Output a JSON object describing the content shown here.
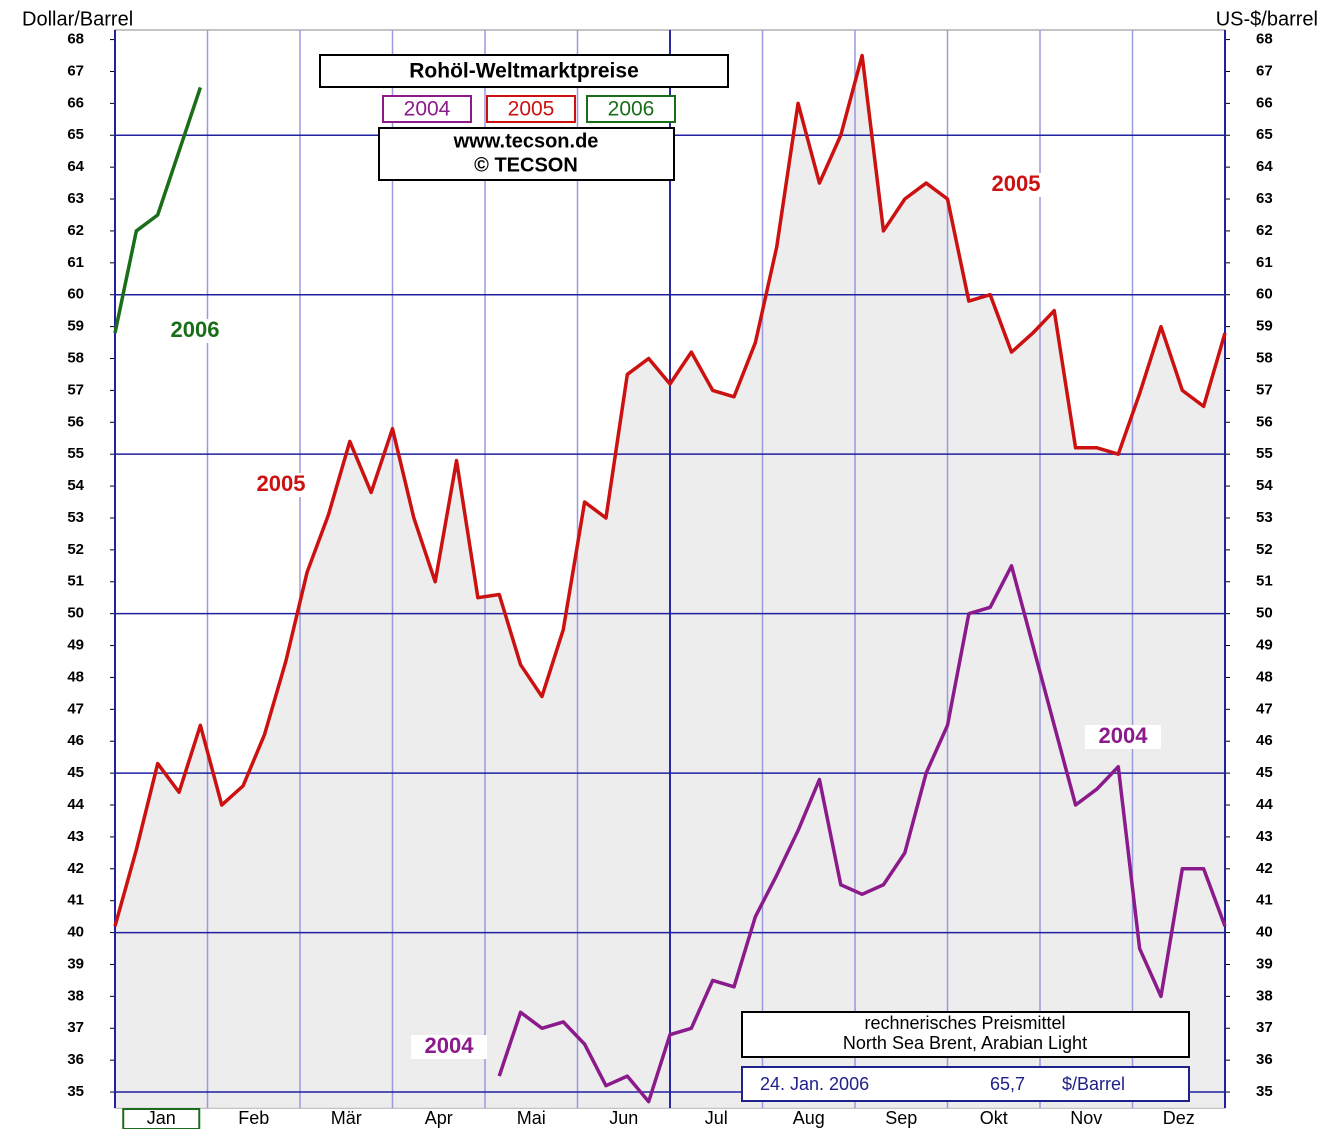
{
  "chart_data": {
    "type": "line",
    "title": "Rohöl-Weltmarktpreise",
    "subtitle": [
      "www.tecson.de",
      "© TECSON"
    ],
    "y_label": "Dollar/Barrel",
    "y2_label": "US-$/barrel",
    "categories": [
      "Jan",
      "Feb",
      "Mär",
      "Apr",
      "Mai",
      "Jun",
      "Jul",
      "Aug",
      "Sep",
      "Okt",
      "Nov",
      "Dez"
    ],
    "x": [
      0,
      1,
      2,
      3,
      4,
      5,
      6,
      7,
      8,
      9,
      10,
      11,
      12,
      13,
      14,
      15,
      16,
      17,
      18,
      19,
      20,
      21,
      22,
      23,
      24,
      25,
      26,
      27,
      28,
      29,
      30,
      31,
      32,
      33,
      34,
      35,
      36,
      37,
      38,
      39,
      40,
      41,
      42,
      43,
      44,
      45,
      46,
      47,
      48,
      49,
      50,
      51,
      52
    ],
    "xlim": [
      0,
      52
    ],
    "ylim": [
      34.5,
      68.3
    ],
    "yticks": [
      35,
      36,
      37,
      38,
      39,
      40,
      41,
      42,
      43,
      44,
      45,
      46,
      47,
      48,
      49,
      50,
      51,
      52,
      53,
      54,
      55,
      56,
      57,
      58,
      59,
      60,
      61,
      62,
      63,
      64,
      65,
      66,
      67,
      68
    ],
    "grid": true,
    "series": [
      {
        "name": "2004",
        "color": "#8b1a8b",
        "values": [
          null,
          null,
          null,
          null,
          null,
          null,
          null,
          null,
          null,
          null,
          null,
          null,
          null,
          null,
          null,
          null,
          null,
          null,
          35.5,
          37.5,
          37.0,
          37.2,
          36.5,
          35.2,
          35.5,
          34.7,
          36.8,
          37.0,
          38.5,
          38.3,
          40.5,
          41.8,
          43.2,
          44.8,
          41.5,
          41.2,
          41.5,
          42.5,
          45.0,
          46.5,
          50.0,
          50.2,
          51.5,
          49.0,
          46.5,
          44.0,
          44.5,
          45.2,
          39.5,
          38.0,
          42.0,
          42.0,
          40.2
        ]
      },
      {
        "name": "2005",
        "color": "#cc1111",
        "values": [
          40.2,
          42.6,
          45.3,
          44.4,
          46.5,
          44.0,
          44.6,
          46.2,
          48.5,
          51.3,
          53.1,
          55.4,
          53.8,
          55.8,
          53.0,
          51.0,
          54.8,
          50.5,
          50.6,
          48.4,
          47.4,
          49.5,
          53.5,
          53.0,
          57.5,
          58.0,
          57.2,
          58.2,
          57.0,
          56.8,
          58.5,
          61.5,
          66.0,
          63.5,
          65.0,
          67.5,
          62.0,
          63.0,
          63.5,
          63.0,
          59.8,
          60.0,
          58.2,
          58.8,
          59.5,
          55.2,
          55.2,
          55.0,
          56.9,
          59.0,
          57.0,
          56.5,
          58.8
        ]
      },
      {
        "name": "2006",
        "color": "#1a6e1a",
        "values": [
          58.8,
          62.0,
          62.5,
          64.5,
          66.5,
          null,
          null,
          null,
          null,
          null,
          null,
          null,
          null,
          null,
          null,
          null,
          null,
          null,
          null,
          null,
          null,
          null,
          null,
          null,
          null,
          null,
          null,
          null,
          null,
          null,
          null,
          null,
          null,
          null,
          null,
          null,
          null,
          null,
          null,
          null,
          null,
          null,
          null,
          null,
          null,
          null,
          null,
          null,
          null,
          null,
          null,
          null,
          null
        ]
      }
    ],
    "annotations": [
      "rechnerisches Preismittel",
      "North Sea Brent, Arabian Light",
      "24. Jan. 2006",
      "65,7",
      "$/Barrel"
    ]
  }
}
